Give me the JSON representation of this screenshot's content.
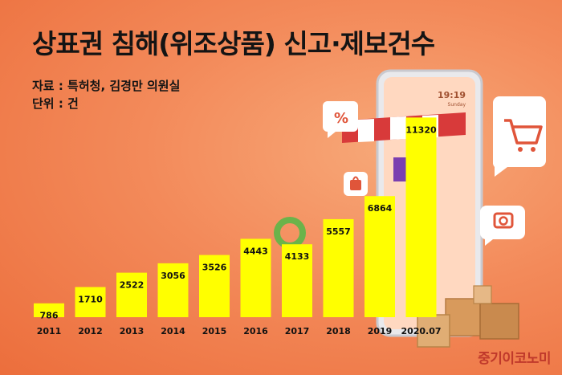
{
  "title": "상표권 침해(위조상품) 신고·제보건수",
  "source_text": "자료 : 특허청, 김경만 의원실",
  "unit_text": "단위 : 건",
  "brand": "중기이코노미",
  "phone_time": "19:19",
  "phone_day": "Sunday",
  "colors": {
    "bar": "#ffff00",
    "background": "#f38a5a",
    "brand": "#c0392b"
  },
  "icons": [
    "percent-icon",
    "shopping-cart-icon",
    "camera-icon",
    "shopping-bag-icon",
    "smartphone-illustration",
    "awning-illustration",
    "parcel-boxes-illustration"
  ],
  "chart_data": {
    "type": "bar",
    "categories": [
      "2011",
      "2012",
      "2013",
      "2014",
      "2015",
      "2016",
      "2017",
      "2018",
      "2019",
      "2020.07"
    ],
    "values": [
      786,
      1710,
      2522,
      3056,
      3526,
      4443,
      4133,
      5557,
      6864,
      11320
    ],
    "title": "상표권 침해(위조상품) 신고·제보건수",
    "xlabel": "",
    "ylabel": "",
    "ylim": [
      0,
      11700
    ],
    "grid": false,
    "legend": "none",
    "data_labels": true
  }
}
